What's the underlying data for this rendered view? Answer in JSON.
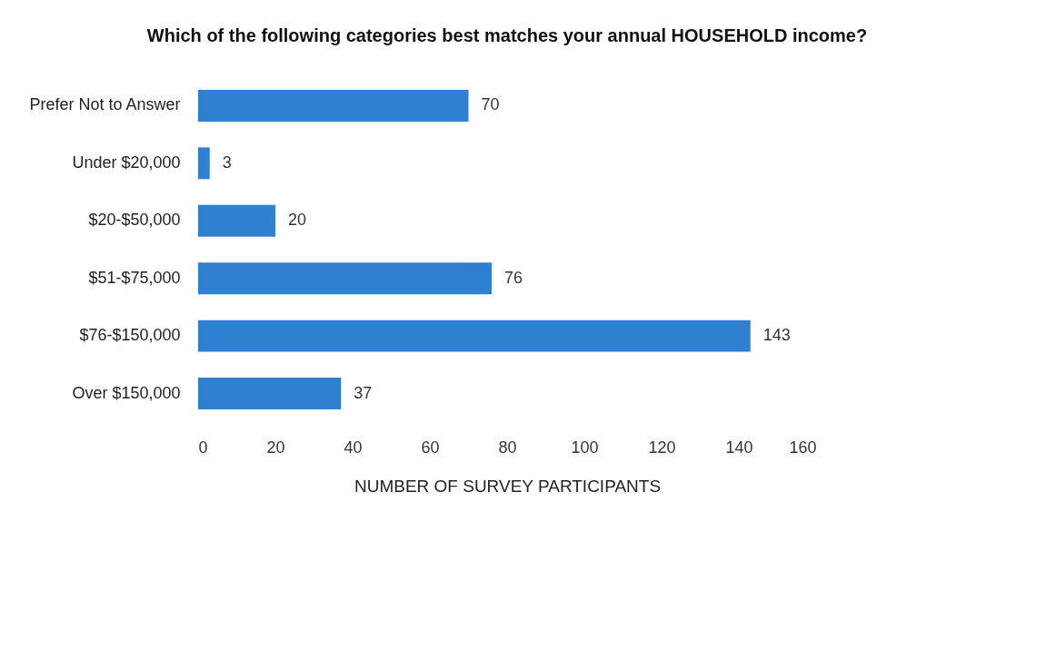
{
  "chart_data": {
    "type": "bar",
    "orientation": "horizontal",
    "title": "Which of the following categories best matches your annual HOUSEHOLD income?",
    "xlabel": "NUMBER OF SURVEY PARTICIPANTS",
    "categories": [
      "Prefer Not to Answer",
      "Under $20,000",
      "$20-$50,000",
      "$51-$75,000",
      "$76-$150,000",
      "Over $150,000"
    ],
    "values": [
      70,
      3,
      20,
      76,
      143,
      37
    ],
    "color": "#2f80d0",
    "xlim": [
      0,
      160
    ],
    "xticks": [
      0,
      20,
      40,
      60,
      80,
      100,
      120,
      140,
      160
    ],
    "data_labels": true,
    "grid": false
  }
}
